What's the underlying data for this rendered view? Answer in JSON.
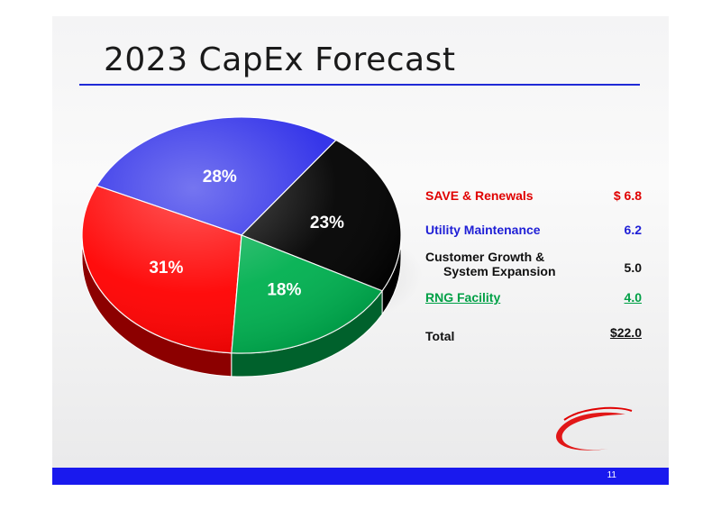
{
  "slide": {
    "title": "2023 CapEx Forecast",
    "page_number": "11"
  },
  "chart_data": {
    "type": "pie",
    "title": "",
    "slices": [
      {
        "label": "SAVE & Renewals",
        "value": 6.8,
        "percent_label": "31%",
        "color": "#ff0000"
      },
      {
        "label": "Utility Maintenance",
        "value": 6.2,
        "percent_label": "28%",
        "color": "#2b2be8"
      },
      {
        "label": "Customer Growth & System Expansion",
        "value": 5.0,
        "percent_label": "23%",
        "color": "#000000"
      },
      {
        "label": "RNG Facility",
        "value": 4.0,
        "percent_label": "18%",
        "color": "#00b050"
      }
    ]
  },
  "legend": {
    "rows": [
      {
        "label": "SAVE & Renewals",
        "label2": "",
        "value": "$  6.8",
        "color": "#e00000",
        "underline": false
      },
      {
        "label": "Utility Maintenance",
        "label2": "",
        "value": "6.2",
        "color": "#1f1fd6",
        "underline": false
      },
      {
        "label": "Customer Growth &",
        "label2": "System Expansion",
        "value": "5.0",
        "color": "#111111",
        "underline": false
      },
      {
        "label": "RNG Facility",
        "label2": "",
        "value": "4.0",
        "color": "#00a046",
        "underline": true
      }
    ],
    "total": {
      "label": "Total",
      "value": "$22.0",
      "color": "#111111"
    }
  },
  "colors": {
    "accent_blue": "#1919ee",
    "logo_red": "#e00000"
  }
}
